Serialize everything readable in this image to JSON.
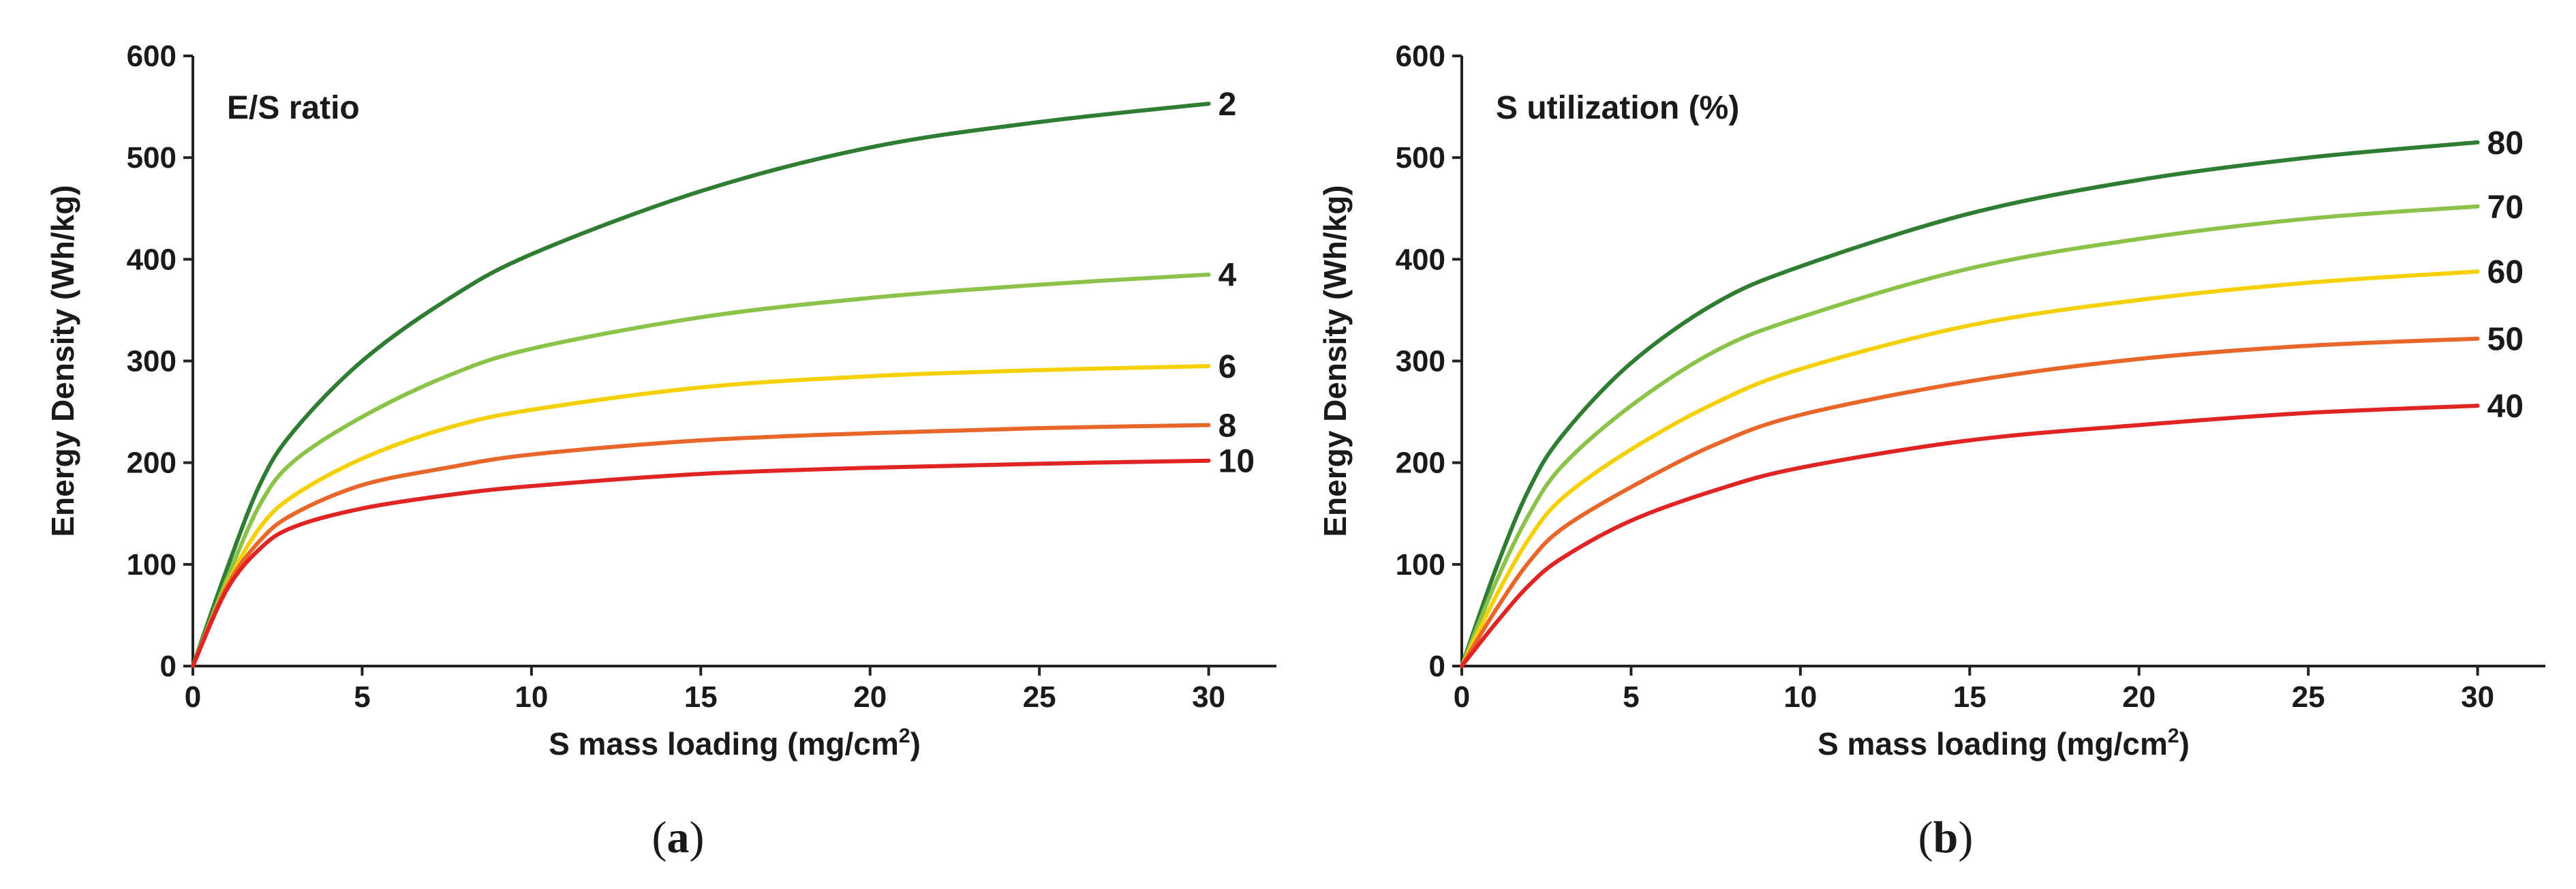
{
  "chart_data": [
    {
      "type": "line",
      "panel_label": "a",
      "title": "E/S ratio",
      "xlabel": "S mass loading (mg/cm",
      "xlabel_superscript": "2",
      "xlabel_suffix": ")",
      "ylabel": "Energy Density (Wh/kg)",
      "xlim": [
        0,
        32
      ],
      "ylim": [
        0,
        600
      ],
      "xticks": [
        0,
        5,
        10,
        15,
        20,
        25,
        30
      ],
      "yticks": [
        0,
        100,
        200,
        300,
        400,
        500,
        600
      ],
      "x": [
        0,
        1,
        2,
        3,
        5,
        7.5,
        10,
        15,
        20,
        25,
        30
      ],
      "series": [
        {
          "name": "2",
          "color": "#2e7d32",
          "values": [
            0,
            95,
            180,
            232,
            300,
            360,
            405,
            467,
            510,
            535,
            553
          ]
        },
        {
          "name": "4",
          "color": "#8bc34a",
          "values": [
            0,
            85,
            160,
            202,
            245,
            285,
            312,
            343,
            362,
            375,
            385
          ]
        },
        {
          "name": "6",
          "color": "#f4d000",
          "values": [
            0,
            80,
            137,
            168,
            204,
            234,
            252,
            274,
            285,
            291,
            295
          ]
        },
        {
          "name": "8",
          "color": "#e8662a",
          "values": [
            0,
            78,
            124,
            150,
            178,
            195,
            208,
            222,
            229,
            234,
            237
          ]
        },
        {
          "name": "10",
          "color": "#e02424",
          "values": [
            0,
            75,
            116,
            137,
            155,
            168,
            177,
            189,
            195,
            199,
            202
          ]
        }
      ]
    },
    {
      "type": "line",
      "panel_label": "b",
      "title": "S utilization (%)",
      "xlabel": "S mass loading (mg/cm",
      "xlabel_superscript": "2",
      "xlabel_suffix": ")",
      "ylabel": "Energy Density (Wh/kg)",
      "xlim": [
        0,
        32
      ],
      "ylim": [
        0,
        600
      ],
      "xticks": [
        0,
        5,
        10,
        15,
        20,
        25,
        30
      ],
      "yticks": [
        0,
        100,
        200,
        300,
        400,
        500,
        600
      ],
      "x": [
        0,
        1,
        2,
        3,
        5,
        7.5,
        10,
        15,
        20,
        25,
        30
      ],
      "series": [
        {
          "name": "80",
          "color": "#2e7d32",
          "values": [
            0,
            95,
            175,
            228,
            298,
            357,
            393,
            445,
            478,
            500,
            515
          ]
        },
        {
          "name": "70",
          "color": "#8bc34a",
          "values": [
            0,
            82,
            150,
            198,
            256,
            310,
            343,
            391,
            420,
            440,
            452
          ]
        },
        {
          "name": "60",
          "color": "#f4d000",
          "values": [
            0,
            68,
            126,
            166,
            213,
            259,
            292,
            335,
            360,
            377,
            388
          ]
        },
        {
          "name": "50",
          "color": "#e8662a",
          "values": [
            0,
            55,
            103,
            136,
            176,
            218,
            247,
            280,
            302,
            315,
            322
          ]
        },
        {
          "name": "40",
          "color": "#e02424",
          "values": [
            0,
            42,
            80,
            107,
            143,
            173,
            195,
            222,
            237,
            249,
            256
          ]
        }
      ]
    }
  ],
  "captions": {
    "a": {
      "open": "(",
      "letter": "a",
      "close": ")"
    },
    "b": {
      "open": "(",
      "letter": "b",
      "close": ")"
    }
  }
}
